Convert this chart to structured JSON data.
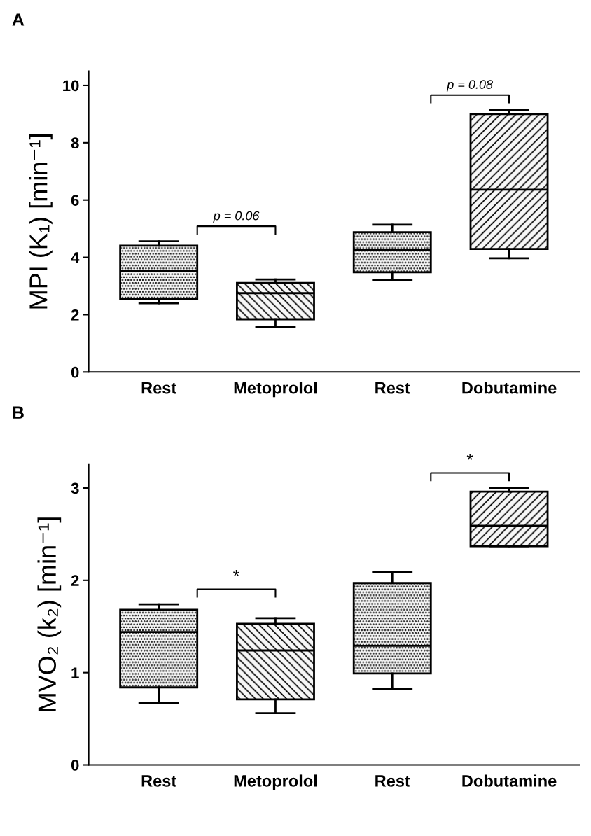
{
  "chart_data": [
    {
      "type": "box",
      "title": "A",
      "ylabel": "MPI (K₁) [min⁻¹]",
      "categories": [
        "Rest",
        "Metoprolol",
        "Rest",
        "Dobutamine"
      ],
      "color": "#000000",
      "boxes": [
        {
          "low": 2.4,
          "q1": 2.56,
          "median": 3.52,
          "q3": 4.41,
          "high": 4.56
        },
        {
          "low": 1.56,
          "q1": 1.84,
          "median": 2.75,
          "q3": 3.11,
          "high": 3.23
        },
        {
          "low": 3.22,
          "q1": 3.48,
          "median": 4.25,
          "q3": 4.88,
          "high": 5.14
        },
        {
          "low": 3.97,
          "q1": 4.29,
          "median": 6.36,
          "q3": 9.0,
          "high": 9.14
        }
      ],
      "annotations": [
        "p = 0.06",
        "p = 0.08"
      ],
      "ylim": [
        0,
        10.5
      ],
      "yticks": [
        0,
        2,
        4,
        6,
        8,
        10
      ],
      "grid": false
    },
    {
      "type": "box",
      "title": "B",
      "ylabel": "MVO₂ (k₂) [min⁻¹]",
      "categories": [
        "Rest",
        "Metoprolol",
        "Rest",
        "Dobutamine"
      ],
      "color": "#000000",
      "boxes": [
        {
          "low": 0.67,
          "q1": 0.84,
          "median": 1.44,
          "q3": 1.68,
          "high": 1.74
        },
        {
          "low": 0.56,
          "q1": 0.71,
          "median": 1.24,
          "q3": 1.53,
          "high": 1.59
        },
        {
          "low": 0.82,
          "q1": 0.99,
          "median": 1.29,
          "q3": 1.97,
          "high": 2.09
        },
        {
          "low": 2.37,
          "q1": 2.37,
          "median": 2.59,
          "q3": 2.96,
          "high": 3.0
        }
      ],
      "annotations": [
        "*",
        "*"
      ],
      "ylim": [
        0,
        3.26
      ],
      "yticks": [
        0,
        1,
        2,
        3
      ],
      "grid": false
    }
  ]
}
